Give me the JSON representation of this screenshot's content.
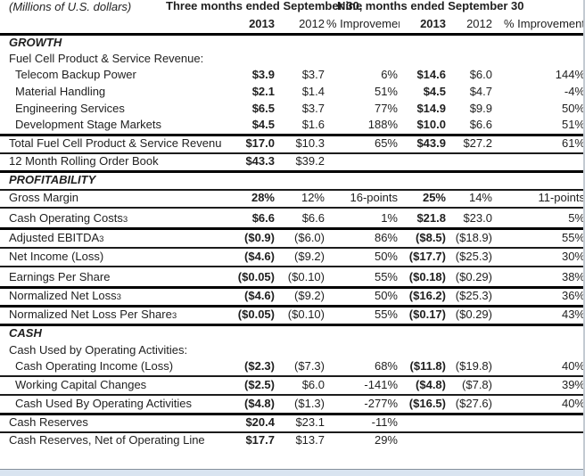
{
  "colors": {
    "text": "#1f1f1f",
    "rule": "#000000",
    "bottom_strip": "#d9e4f0",
    "right_edge_line": "#c3cad2"
  },
  "header": {
    "units_label": "(Millions of U.S. dollars)",
    "group1": "Three months ended September 30,",
    "group2": "Nine months ended September 30",
    "columns": [
      "2013",
      "2012",
      "% Improvement",
      "2013",
      "2012",
      "% Improvement"
    ]
  },
  "table": {
    "rows": [
      {
        "type": "section",
        "label": "GROWTH",
        "rule": "none"
      },
      {
        "type": "label",
        "label": "Fuel Cell Product & Service Revenue:",
        "rule": "none"
      },
      {
        "type": "data",
        "label": "Telecom Backup Power",
        "indent": true,
        "rule": "none",
        "values": [
          "$3.9",
          "$3.7",
          "6%",
          "$14.6",
          "$6.0",
          "144%"
        ]
      },
      {
        "type": "data",
        "label": "Material Handling",
        "indent": true,
        "rule": "none",
        "values": [
          "$2.1",
          "$1.4",
          "51%",
          "$4.5",
          "$4.7",
          "-4%"
        ]
      },
      {
        "type": "data",
        "label": "Engineering Services",
        "indent": true,
        "rule": "none",
        "values": [
          "$6.5",
          "$3.7",
          "77%",
          "$14.9",
          "$9.9",
          "50%"
        ]
      },
      {
        "type": "data",
        "label": "Development Stage Markets",
        "indent": true,
        "rule": "thick",
        "values": [
          "$4.5",
          "$1.6",
          "188%",
          "$10.0",
          "$6.6",
          "51%"
        ]
      },
      {
        "type": "data",
        "label": "Total Fuel Cell Product & Service Revenue",
        "rule": "thin",
        "values": [
          "$17.0",
          "$10.3",
          "65%",
          "$43.9",
          "$27.2",
          "61%"
        ]
      },
      {
        "type": "data",
        "label": "12 Month Rolling Order Book",
        "rule": "thick",
        "values": [
          "$43.3",
          "$39.2",
          "",
          "",
          "",
          ""
        ]
      },
      {
        "type": "section",
        "label": "PROFITABILITY",
        "rule": "thin"
      },
      {
        "type": "data",
        "label": "Gross Margin",
        "rule": "thin",
        "values": [
          "28%",
          "12%",
          "16-points",
          "25%",
          "14%",
          "11-points"
        ]
      },
      {
        "type": "data",
        "label": "Cash Operating Costs",
        "fn": "3",
        "rule": "thick",
        "values": [
          "$6.6",
          "$6.6",
          "1%",
          "$21.8",
          "$23.0",
          "5%"
        ]
      },
      {
        "type": "data",
        "label": "Adjusted EBITDA",
        "fn": "3",
        "rule": "thin",
        "values": [
          "($0.9)",
          "($6.0)",
          "86%",
          "($8.5)",
          "($18.9)",
          "55%"
        ]
      },
      {
        "type": "data",
        "label": "Net Income (Loss)",
        "rule": "thin",
        "values": [
          "($4.6)",
          "($9.2)",
          "50%",
          "($17.7)",
          "($25.3)",
          "30%"
        ]
      },
      {
        "type": "data",
        "label": "Earnings Per Share",
        "rule": "thick",
        "values": [
          "($0.05)",
          "($0.10)",
          "55%",
          "($0.18)",
          "($0.29)",
          "38%"
        ]
      },
      {
        "type": "data",
        "label": "Normalized Net Loss",
        "fn": "3",
        "rule": "thick",
        "values": [
          "($4.6)",
          "($9.2)",
          "50%",
          "($16.2)",
          "($25.3)",
          "36%"
        ]
      },
      {
        "type": "data",
        "label": "Normalized Net Loss Per Share",
        "fn": "3",
        "rule": "thick",
        "values": [
          "($0.05)",
          "($0.10)",
          "55%",
          "($0.17)",
          "($0.29)",
          "43%"
        ]
      },
      {
        "type": "section",
        "label": "CASH",
        "rule": "none"
      },
      {
        "type": "label",
        "label": "Cash Used by Operating Activities:",
        "rule": "none"
      },
      {
        "type": "data",
        "label": "Cash Operating Income (Loss)",
        "indent": true,
        "rule": "thin",
        "values": [
          "($2.3)",
          "($7.3)",
          "68%",
          "($11.8)",
          "($19.8)",
          "40%"
        ]
      },
      {
        "type": "data",
        "label": "Working Capital Changes",
        "indent": true,
        "rule": "thin",
        "values": [
          "($2.5)",
          "$6.0",
          "-141%",
          "($4.8)",
          "($7.8)",
          "39%"
        ]
      },
      {
        "type": "data",
        "label": "Cash Used By Operating Activities",
        "indent": true,
        "rule": "thick",
        "values": [
          "($4.8)",
          "($1.3)",
          "-277%",
          "($16.5)",
          "($27.6)",
          "40%"
        ]
      },
      {
        "type": "data",
        "label": "Cash Reserves",
        "rule": "thin",
        "values": [
          "$20.4",
          "$23.1",
          "-11%",
          "",
          "",
          ""
        ]
      },
      {
        "type": "data",
        "label": "Cash Reserves, Net of Operating Line",
        "rule": "none",
        "values": [
          "$17.7",
          "$13.7",
          "29%",
          "",
          "",
          ""
        ]
      }
    ]
  }
}
